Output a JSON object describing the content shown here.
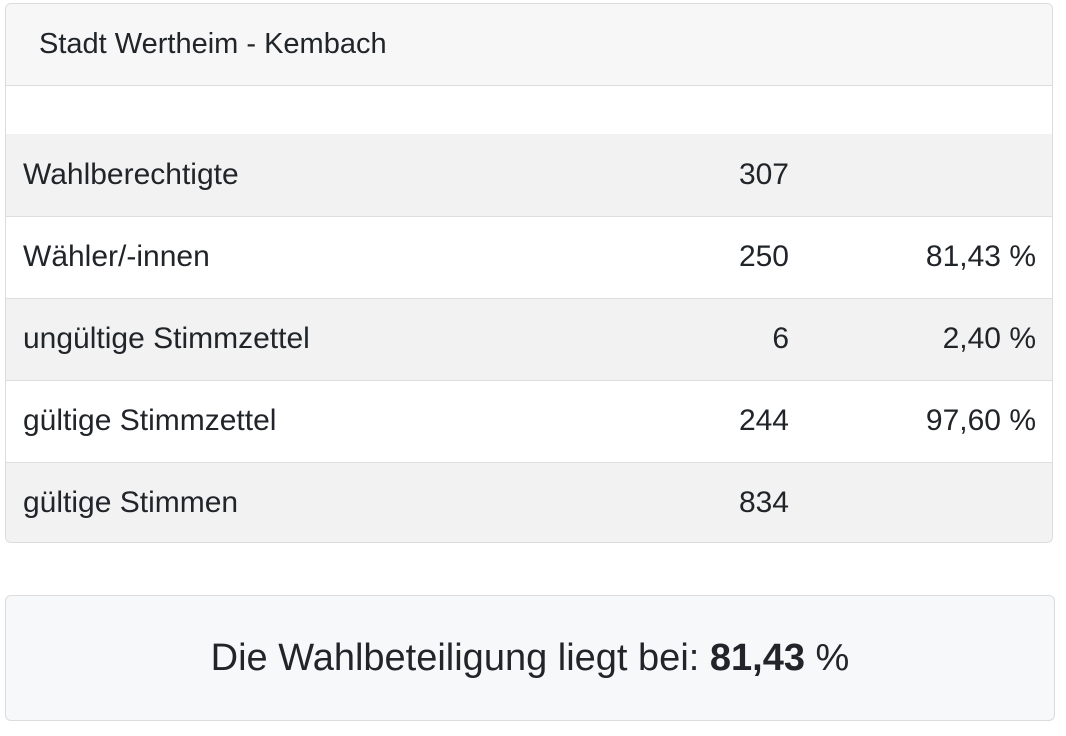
{
  "header": {
    "title": "Stadt Wertheim - Kembach"
  },
  "rows": [
    {
      "label": "Wahlberechtigte",
      "count": "307",
      "percent": ""
    },
    {
      "label": "Wähler/-innen",
      "count": "250",
      "percent": "81,43 %"
    },
    {
      "label": "ungültige Stimmzettel",
      "count": "6",
      "percent": "2,40 %"
    },
    {
      "label": "gültige Stimmzettel",
      "count": "244",
      "percent": "97,60 %"
    },
    {
      "label": "gültige Stimmen",
      "count": "834",
      "percent": ""
    }
  ],
  "turnout": {
    "prefix": "Die Wahlbeteiligung liegt bei: ",
    "value": "81,43",
    "suffix": " %"
  }
}
